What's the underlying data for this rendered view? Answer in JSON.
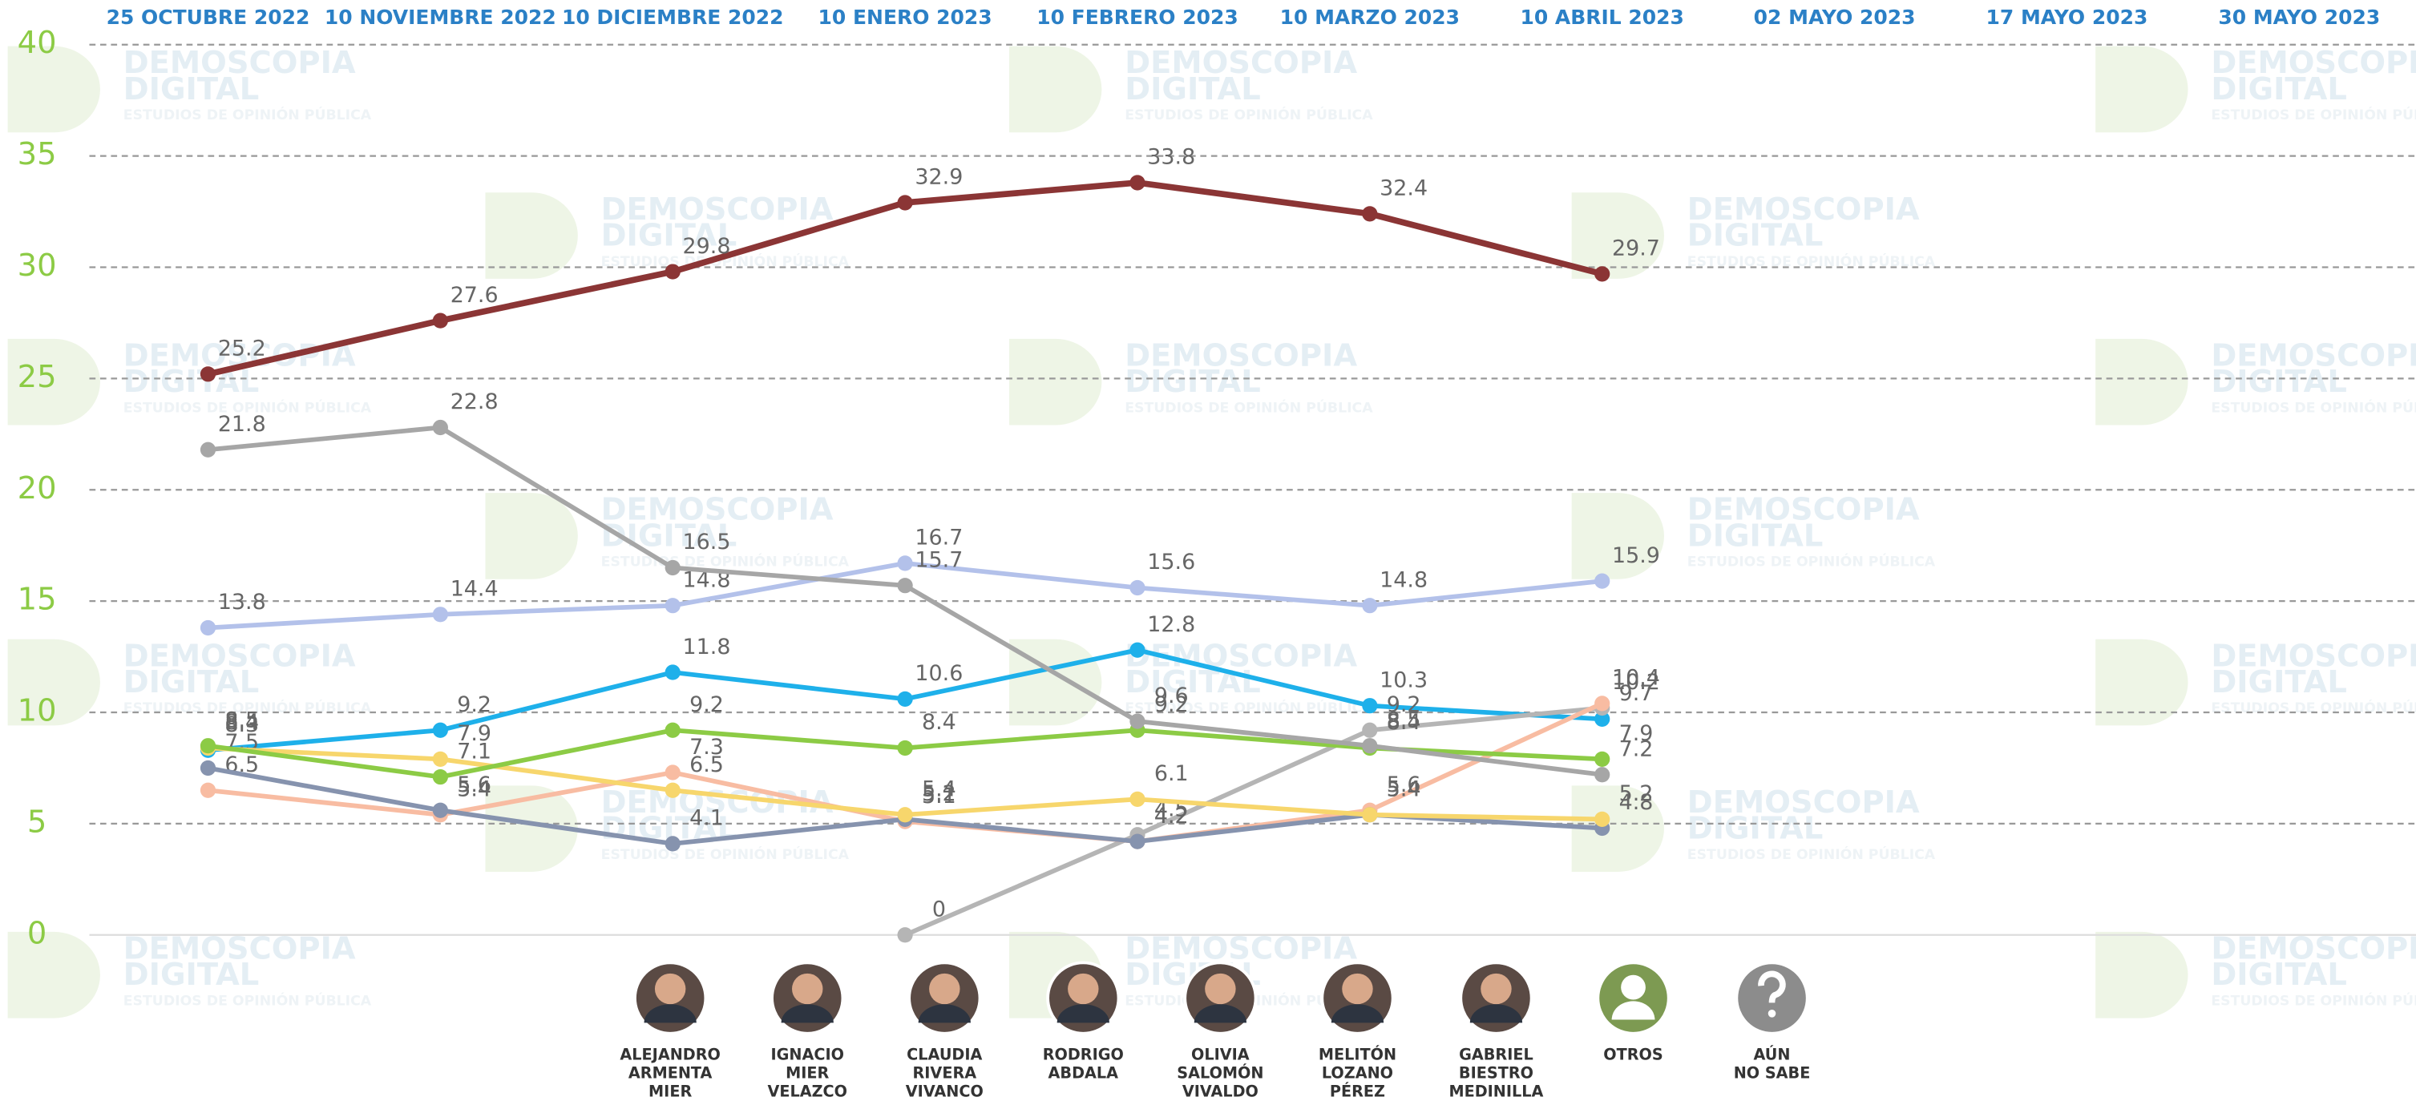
{
  "chart_data": {
    "type": "line",
    "categories": [
      "25 OCTUBRE 2022",
      "10 NOVIEMBRE 2022",
      "10 DICIEMBRE 2022",
      "10 ENERO 2023",
      "10 FEBRERO 2023",
      "10 MARZO 2023",
      "10 ABRIL 2023",
      "02 MAYO 2023",
      "17 MAYO 2023",
      "30 MAYO 2023"
    ],
    "ylim": [
      0,
      40
    ],
    "yticks": [
      0,
      5,
      10,
      15,
      20,
      25,
      30,
      35,
      40
    ],
    "grid": true,
    "series": [
      {
        "name": "ALEJANDRO\nARMENTA\nMIER",
        "color": "#8b3535",
        "values": [
          25.2,
          27.6,
          29.8,
          32.9,
          33.8,
          32.4,
          29.7,
          null,
          null,
          null
        ]
      },
      {
        "name": "IGNACIO\nMIER\nVELAZCO",
        "color": "#b3c1ea",
        "values": [
          13.8,
          14.4,
          14.8,
          16.7,
          15.6,
          14.8,
          15.9,
          null,
          null,
          null
        ]
      },
      {
        "name": "CLAUDIA\nRIVERA\nVIVANCO",
        "color": "#1eb0ea",
        "values": [
          8.3,
          9.2,
          11.8,
          10.6,
          12.8,
          10.3,
          9.7,
          null,
          null,
          null
        ]
      },
      {
        "name": "RODRIGO\nABDALA",
        "color": "#b5b5b5",
        "values": [
          null,
          null,
          null,
          0,
          4.5,
          9.2,
          10.2,
          null,
          null,
          null
        ]
      },
      {
        "name": "OLIVIA\nSALOMÓN\nVIVALDO",
        "color": "#f8bca2",
        "values": [
          6.5,
          5.4,
          7.3,
          5.1,
          4.2,
          5.6,
          10.4,
          null,
          null,
          null
        ]
      },
      {
        "name": "MELITÓN\nLOZANO\nPÉREZ",
        "color": "#8693ae",
        "values": [
          7.5,
          5.6,
          4.1,
          5.2,
          4.2,
          5.4,
          4.8,
          null,
          null,
          null
        ]
      },
      {
        "name": "GABRIEL\nBIESTRO\nMEDINILLA",
        "color": "#f7d66c",
        "values": [
          8.4,
          7.9,
          6.5,
          5.4,
          6.1,
          5.4,
          5.2,
          null,
          null,
          null
        ]
      },
      {
        "name": "OTROS",
        "color": "#8ccb45",
        "values": [
          8.5,
          7.1,
          9.2,
          8.4,
          9.2,
          8.4,
          7.9,
          null,
          null,
          null
        ]
      },
      {
        "name": "AÚN\nNO SABE",
        "color": "#a6a6a6",
        "values": [
          21.8,
          22.8,
          16.5,
          15.7,
          9.6,
          8.5,
          7.2,
          null,
          null,
          null
        ]
      }
    ],
    "watermark": {
      "brand": "DEMOSCOPIA",
      "brand2": "DIGITAL",
      "tagline": "ESTUDIOS DE OPINIÓN PÚBLICA"
    }
  }
}
